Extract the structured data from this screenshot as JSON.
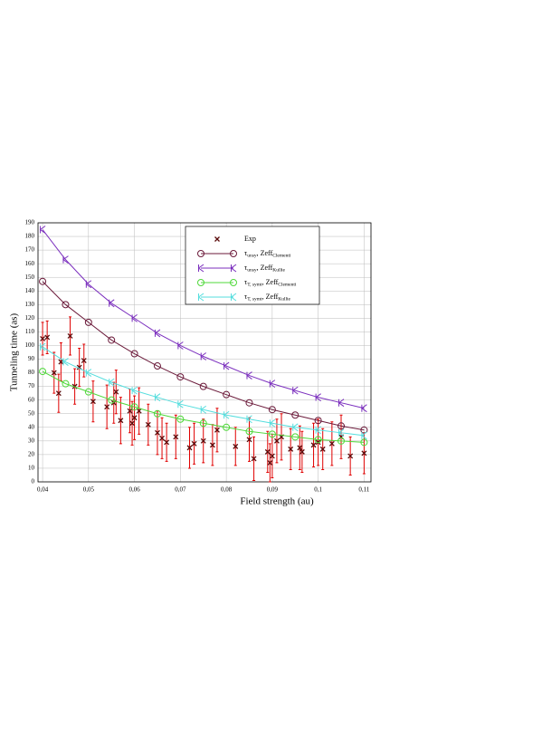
{
  "chart_data": {
    "type": "scatter-line",
    "xlabel": "Field strength (au)",
    "ylabel": "Tunneling time (as)",
    "xlim": [
      0.039,
      0.1115
    ],
    "ylim": [
      0,
      190
    ],
    "grid": true,
    "legend": "upper-center",
    "xticks": [
      {
        "value": 0.04,
        "label": "0,04"
      },
      {
        "value": 0.05,
        "label": "0,05"
      },
      {
        "value": 0.06,
        "label": "0,06"
      },
      {
        "value": 0.07,
        "label": "0,07"
      },
      {
        "value": 0.08,
        "label": "0,08"
      },
      {
        "value": 0.09,
        "label": "0,09"
      },
      {
        "value": 0.1,
        "label": "0,1"
      },
      {
        "value": 0.11,
        "label": "0,11"
      }
    ],
    "yticks": [
      0,
      10,
      20,
      30,
      40,
      50,
      60,
      70,
      80,
      90,
      100,
      110,
      120,
      130,
      140,
      150,
      160,
      170,
      180,
      190
    ],
    "series": [
      {
        "name": [
          "Exp"
        ],
        "marker": "x",
        "color": "#5a0a0a",
        "error_color": "#e00000",
        "x": [
          0.04,
          0.041,
          0.0425,
          0.0435,
          0.044,
          0.046,
          0.047,
          0.048,
          0.049,
          0.051,
          0.054,
          0.0555,
          0.056,
          0.057,
          0.059,
          0.0595,
          0.06,
          0.061,
          0.063,
          0.065,
          0.066,
          0.067,
          0.069,
          0.072,
          0.073,
          0.075,
          0.077,
          0.078,
          0.082,
          0.085,
          0.086,
          0.089,
          0.0895,
          0.09,
          0.091,
          0.092,
          0.094,
          0.096,
          0.0965,
          0.099,
          0.1,
          0.101,
          0.103,
          0.105,
          0.107,
          0.11
        ],
        "values": [
          105,
          106,
          80,
          65,
          88,
          107,
          70,
          84,
          89,
          59,
          55,
          58,
          66,
          45,
          52,
          43,
          47,
          52,
          42,
          36,
          32,
          29,
          33,
          25,
          28,
          30,
          27,
          38,
          26,
          31,
          17,
          22,
          14,
          19,
          30,
          33,
          24,
          25,
          22,
          27,
          29,
          24,
          28,
          33,
          19,
          21
        ],
        "errors": [
          12,
          12,
          15,
          14,
          14,
          14,
          13,
          14,
          12,
          15,
          16,
          15,
          16,
          17,
          16,
          16,
          16,
          17,
          15,
          16,
          15,
          14,
          16,
          15,
          15,
          16,
          15,
          16,
          14,
          16,
          16,
          15,
          14,
          16,
          16,
          17,
          15,
          16,
          15,
          16,
          17,
          15,
          16,
          16,
          14,
          15
        ]
      },
      {
        "name": [
          "τ",
          "unsy",
          ", Zeff",
          "Clementi"
        ],
        "marker": "C",
        "color": "#6b1a3a",
        "x": [
          0.04,
          0.045,
          0.05,
          0.055,
          0.06,
          0.065,
          0.07,
          0.075,
          0.08,
          0.085,
          0.09,
          0.095,
          0.1,
          0.105,
          0.11
        ],
        "values": [
          147,
          130,
          117,
          104,
          94,
          85,
          77,
          70,
          64,
          58,
          53,
          49,
          45,
          41,
          38
        ]
      },
      {
        "name": [
          "τ",
          "unsy",
          ", Zeff",
          "Kullie"
        ],
        "marker": "K",
        "color": "#7b2fbe",
        "x": [
          0.04,
          0.045,
          0.05,
          0.055,
          0.06,
          0.065,
          0.07,
          0.075,
          0.08,
          0.085,
          0.09,
          0.095,
          0.1,
          0.105,
          0.11
        ],
        "values": [
          185,
          163,
          145,
          131,
          120,
          109,
          100,
          92,
          85,
          78,
          72,
          67,
          62,
          58,
          54
        ]
      },
      {
        "name": [
          "τ",
          "T, symt",
          ", Zeff",
          "Clementi"
        ],
        "marker": "C",
        "color": "#4fd83a",
        "x": [
          0.04,
          0.045,
          0.05,
          0.055,
          0.06,
          0.065,
          0.07,
          0.075,
          0.08,
          0.085,
          0.09,
          0.095,
          0.1,
          0.105,
          0.11
        ],
        "values": [
          81,
          72,
          66,
          60,
          55,
          50,
          46,
          43,
          40,
          37,
          35,
          33,
          31,
          30,
          29
        ]
      },
      {
        "name": [
          "τ",
          "T, symt",
          ", Zeff",
          "Kullie"
        ],
        "marker": "K",
        "color": "#55dede",
        "x": [
          0.04,
          0.045,
          0.05,
          0.055,
          0.06,
          0.065,
          0.07,
          0.075,
          0.08,
          0.085,
          0.09,
          0.095,
          0.1,
          0.105,
          0.11
        ],
        "values": [
          99,
          88,
          80,
          73,
          67,
          62,
          57,
          53,
          49,
          46,
          43,
          40,
          38,
          36,
          34
        ]
      }
    ]
  }
}
